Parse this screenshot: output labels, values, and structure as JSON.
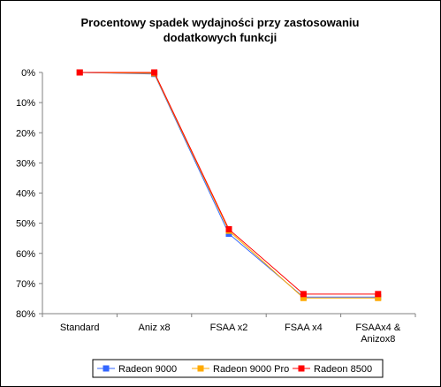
{
  "chart_data": {
    "type": "line",
    "title_lines": [
      "Procentowy spadek wydajności przy zastosowaniu",
      "dodatkowych funkcji"
    ],
    "categories": [
      [
        "Standard"
      ],
      [
        "Aniz x8"
      ],
      [
        "FSAA x2"
      ],
      [
        "FSAA x4"
      ],
      [
        "FSAAx4 &",
        "Anizox8"
      ]
    ],
    "ylim": [
      0,
      80
    ],
    "y_inverted": true,
    "y_ticks": [
      0,
      10,
      20,
      30,
      40,
      50,
      60,
      70,
      80
    ],
    "y_tick_labels": [
      "0%",
      "10%",
      "20%",
      "30%",
      "40%",
      "50%",
      "60%",
      "70%",
      "80%"
    ],
    "grid": false,
    "legend_position": "bottom",
    "series": [
      {
        "name": "Radeon 9000",
        "color": "#3366ff",
        "marker": "square",
        "values": [
          0,
          0.5,
          53.5,
          74.5,
          74.5
        ]
      },
      {
        "name": "Radeon 9000 Pro",
        "color": "#ffaa00",
        "marker": "square",
        "values": [
          0,
          0.3,
          52.5,
          74.8,
          74.8
        ]
      },
      {
        "name": "Radeon 8500",
        "color": "#ff0000",
        "marker": "square",
        "values": [
          0,
          0,
          52,
          73.5,
          73.5
        ]
      }
    ]
  }
}
